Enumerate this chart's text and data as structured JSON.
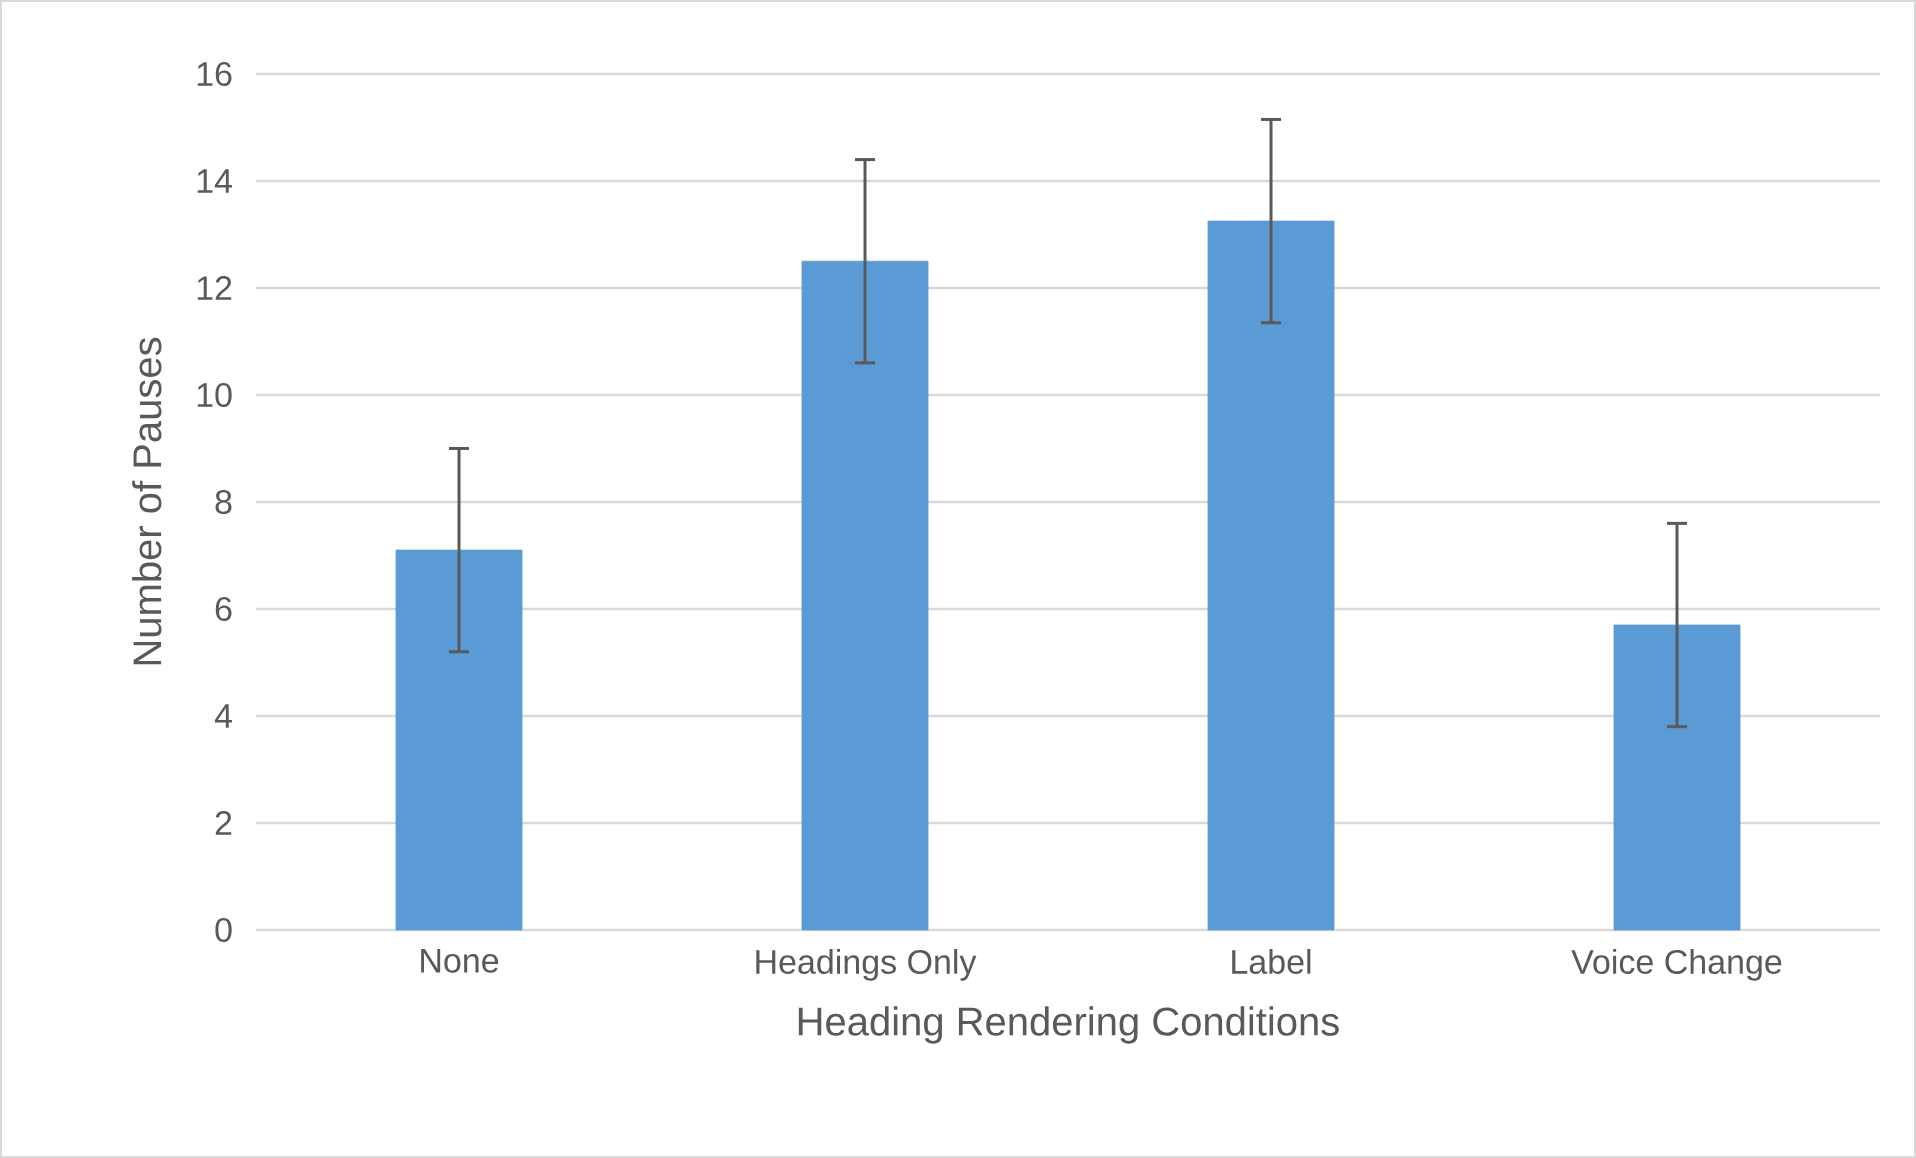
{
  "chart_data": {
    "type": "bar",
    "xlabel": "Heading Rendering Conditions",
    "ylabel": "Number of Pauses",
    "categories": [
      "None",
      "Headings Only",
      "Label",
      "Voice Change"
    ],
    "values": [
      7.1,
      12.5,
      13.25,
      5.7
    ],
    "errors": [
      1.9,
      1.9,
      1.9,
      1.9
    ],
    "color": "#5b9bd5",
    "ylim": [
      0,
      16
    ],
    "yticks": [
      0,
      2,
      4,
      6,
      8,
      10,
      12,
      14,
      16
    ],
    "grid": "y"
  }
}
